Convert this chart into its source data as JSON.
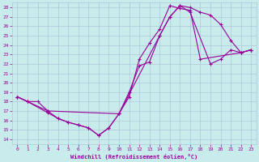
{
  "xlabel": "Windchill (Refroidissement éolien,°C)",
  "bg_color": "#c8ecec",
  "grid_color": "#b0c8d8",
  "line_color": "#990099",
  "xlim": [
    -0.5,
    23.5
  ],
  "ylim": [
    13.5,
    28.5
  ],
  "xticks": [
    0,
    1,
    2,
    3,
    4,
    5,
    6,
    7,
    8,
    9,
    10,
    11,
    12,
    13,
    14,
    15,
    16,
    17,
    18,
    19,
    20,
    21,
    22,
    23
  ],
  "yticks": [
    14,
    15,
    16,
    17,
    18,
    19,
    20,
    21,
    22,
    23,
    24,
    25,
    26,
    27,
    28
  ],
  "line1_x": [
    0,
    1,
    2,
    3,
    4,
    5,
    6,
    7,
    8,
    9,
    10,
    11,
    12,
    13,
    14,
    15,
    16,
    17,
    18,
    19,
    20,
    21,
    22,
    23
  ],
  "line1_y": [
    18.5,
    18.0,
    18.0,
    17.0,
    16.2,
    15.8,
    15.5,
    15.2,
    14.4,
    15.2,
    16.7,
    19.0,
    21.8,
    22.2,
    25.0,
    27.0,
    28.2,
    28.0,
    27.5,
    27.2,
    26.2,
    24.5,
    23.2,
    23.5
  ],
  "line2_x": [
    0,
    1,
    3,
    4,
    5,
    6,
    7,
    8,
    9,
    10,
    11,
    12,
    13,
    14,
    15,
    16,
    17,
    18,
    22,
    23
  ],
  "line2_y": [
    18.5,
    18.0,
    16.8,
    16.2,
    15.8,
    15.5,
    15.2,
    14.4,
    15.2,
    16.7,
    18.5,
    22.5,
    24.2,
    25.7,
    28.2,
    27.9,
    27.7,
    22.5,
    23.2,
    23.5
  ],
  "line3_x": [
    0,
    1,
    3,
    10,
    14,
    15,
    16,
    17,
    19,
    20,
    21,
    22,
    23
  ],
  "line3_y": [
    18.5,
    18.0,
    17.0,
    16.7,
    25.0,
    27.0,
    28.2,
    27.5,
    22.0,
    22.5,
    23.5,
    23.2,
    23.5
  ]
}
